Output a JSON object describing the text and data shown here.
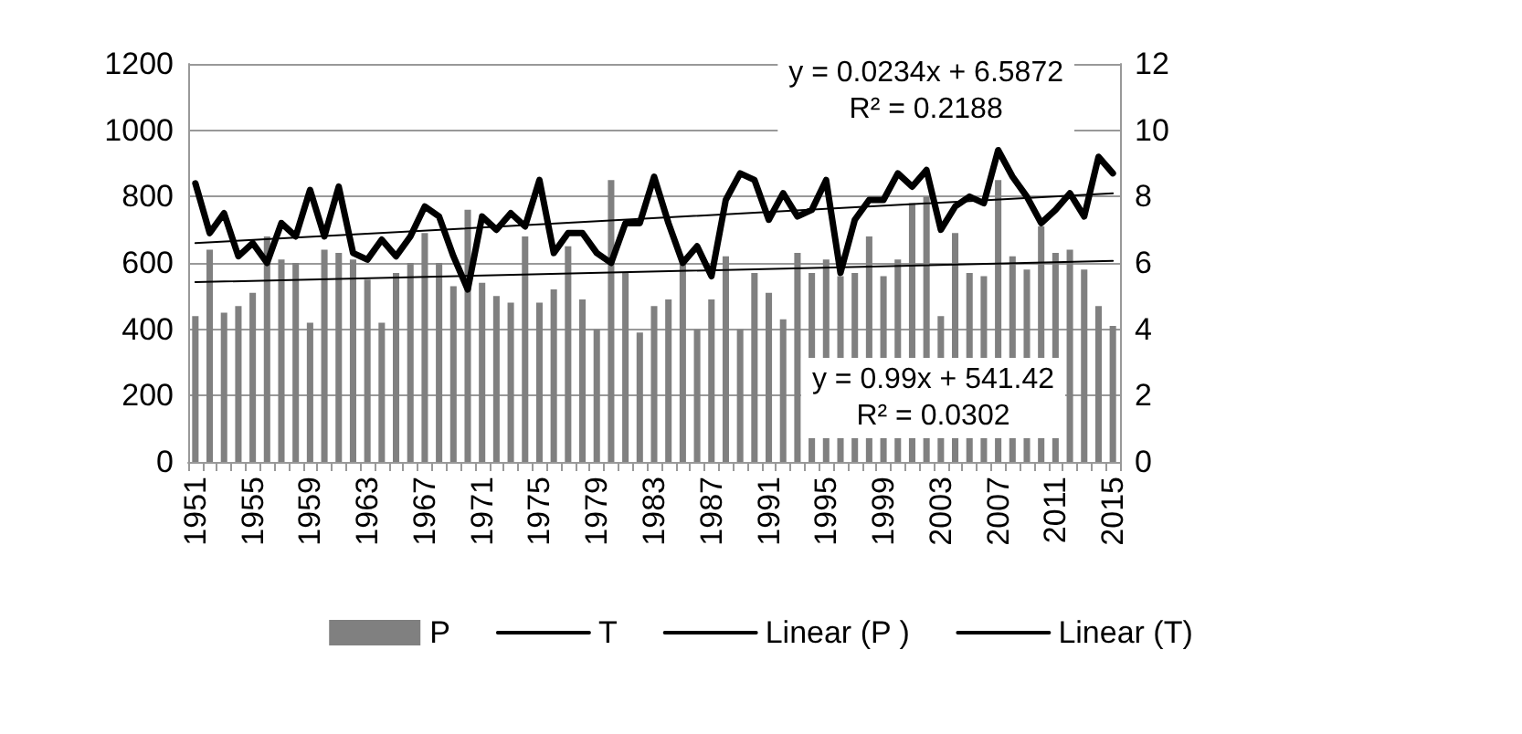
{
  "chart_data": {
    "type": "bar",
    "categories": [
      "1951",
      null,
      null,
      null,
      "1955",
      null,
      null,
      null,
      "1959",
      null,
      null,
      null,
      "1963",
      null,
      null,
      null,
      "1967",
      null,
      null,
      null,
      "1971",
      null,
      null,
      null,
      "1975",
      null,
      null,
      null,
      "1979",
      null,
      null,
      null,
      "1983",
      null,
      null,
      null,
      "1987",
      null,
      null,
      null,
      "1991",
      null,
      null,
      null,
      "1995",
      null,
      null,
      null,
      "1999",
      null,
      null,
      null,
      "2003",
      null,
      null,
      null,
      "2007",
      null,
      null,
      null,
      "2011",
      null,
      null,
      null,
      "2015"
    ],
    "series": [
      {
        "name": "P",
        "color": "#808080",
        "values": [
          440,
          640,
          450,
          470,
          510,
          680,
          610,
          600,
          420,
          640,
          630,
          610,
          550,
          420,
          570,
          600,
          690,
          600,
          530,
          760,
          540,
          500,
          480,
          680,
          480,
          520,
          650,
          490,
          400,
          850,
          570,
          390,
          470,
          490,
          620,
          400,
          490,
          620,
          400,
          570,
          510,
          430,
          630,
          570,
          610,
          560,
          570,
          680,
          560,
          610,
          780,
          800,
          440,
          690,
          570,
          560,
          850,
          620,
          580,
          710,
          630,
          640,
          580,
          470,
          410
        ]
      },
      {
        "name": "T",
        "type": "line",
        "axis": "y2",
        "color": "#000000",
        "values": [
          8.4,
          6.9,
          7.5,
          6.2,
          6.6,
          6.0,
          7.2,
          6.8,
          8.2,
          6.8,
          8.3,
          6.3,
          6.1,
          6.7,
          6.2,
          6.8,
          7.7,
          7.4,
          6.2,
          5.2,
          7.4,
          7.0,
          7.5,
          7.1,
          8.5,
          6.3,
          6.9,
          6.9,
          6.3,
          6.0,
          7.2,
          7.2,
          8.6,
          7.2,
          6.0,
          6.5,
          5.6,
          7.9,
          8.7,
          8.5,
          7.3,
          8.1,
          7.4,
          7.6,
          8.5,
          5.7,
          7.3,
          7.9,
          7.9,
          8.7,
          8.3,
          8.8,
          7.0,
          7.7,
          8.0,
          7.8,
          9.4,
          8.6,
          8.0,
          7.2,
          7.6,
          8.1,
          7.4,
          9.2,
          8.7
        ]
      },
      {
        "name": "Linear (P )",
        "type": "line",
        "color": "#000000",
        "values": [
          542,
          null,
          null,
          null,
          null,
          null,
          null,
          null,
          null,
          null,
          null,
          null,
          null,
          null,
          null,
          null,
          null,
          null,
          null,
          null,
          null,
          null,
          null,
          null,
          null,
          null,
          null,
          null,
          null,
          null,
          null,
          null,
          null,
          null,
          null,
          null,
          null,
          null,
          null,
          null,
          null,
          null,
          null,
          null,
          null,
          null,
          null,
          null,
          null,
          null,
          null,
          null,
          null,
          null,
          null,
          null,
          null,
          null,
          null,
          null,
          null,
          null,
          null,
          null,
          606
        ]
      },
      {
        "name": "Linear (T)",
        "type": "line",
        "axis": "y2",
        "color": "#000000",
        "values": [
          6.6,
          null,
          null,
          null,
          null,
          null,
          null,
          null,
          null,
          null,
          null,
          null,
          null,
          null,
          null,
          null,
          null,
          null,
          null,
          null,
          null,
          null,
          null,
          null,
          null,
          null,
          null,
          null,
          null,
          null,
          null,
          null,
          null,
          null,
          null,
          null,
          null,
          null,
          null,
          null,
          null,
          null,
          null,
          null,
          null,
          null,
          null,
          null,
          null,
          null,
          null,
          null,
          null,
          null,
          null,
          null,
          null,
          null,
          null,
          null,
          null,
          null,
          null,
          null,
          8.1
        ]
      }
    ],
    "ylim": [
      0,
      1200
    ],
    "yticks": [
      0,
      200,
      400,
      600,
      800,
      1000,
      1200
    ],
    "y2lim": [
      0,
      12
    ],
    "y2ticks": [
      0,
      2,
      4,
      6,
      8,
      10,
      12
    ],
    "grid": "y",
    "legend": "bottom",
    "marker": "none",
    "annotations": [
      "y = 0.0234x + 6.5872\nR² = 0.2188",
      "y = 0.99x + 541.42\nR² = 0.0302"
    ]
  }
}
